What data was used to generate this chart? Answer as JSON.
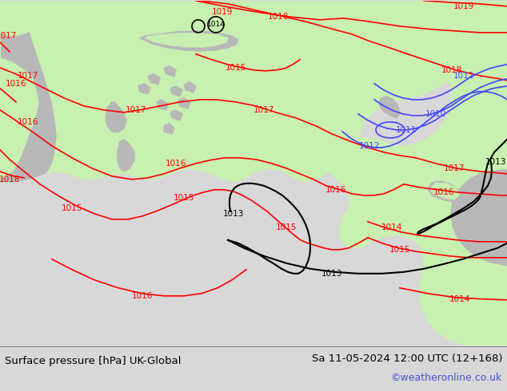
{
  "title_left": "Surface pressure [hPa] UK-Global",
  "title_right": "Sa 11-05-2024 12:00 UTC (12+168)",
  "credit": "©weatheronline.co.uk",
  "sea_color": "#d8d8d8",
  "land_green_color": "#c8f0b0",
  "land_gray_color": "#b8b8b8",
  "red": "#ff0000",
  "black": "#000000",
  "blue": "#4444ff",
  "text_credit_color": "#4455cc",
  "figsize": [
    6.34,
    4.9
  ],
  "dpi": 100
}
